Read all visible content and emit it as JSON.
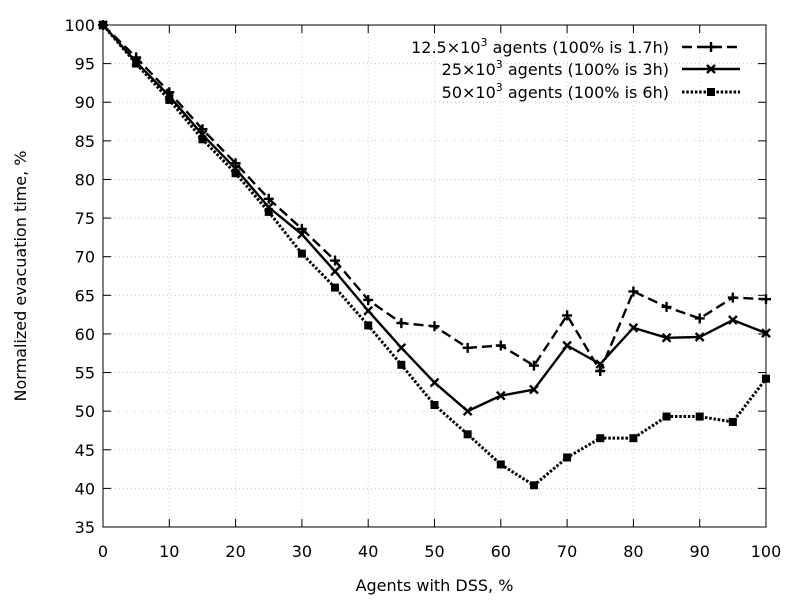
{
  "chart_data": {
    "type": "line",
    "xlabel": "Agents with DSS, %",
    "ylabel": "Normalized evacuation time, %",
    "xlim": [
      0,
      100
    ],
    "ylim": [
      35,
      100
    ],
    "xticks": [
      0,
      10,
      20,
      30,
      40,
      50,
      60,
      70,
      80,
      90,
      100
    ],
    "yticks": [
      35,
      40,
      45,
      50,
      55,
      60,
      65,
      70,
      75,
      80,
      85,
      90,
      95,
      100
    ],
    "grid": true,
    "legend_position": "top-right",
    "x": [
      0,
      5,
      10,
      15,
      20,
      25,
      30,
      35,
      40,
      45,
      50,
      55,
      60,
      65,
      70,
      75,
      80,
      85,
      90,
      95,
      100
    ],
    "series": [
      {
        "name_prefix": "12.5×10",
        "name_sup": "3",
        "name_suffix": " agents (100% is 1.7h)",
        "line_style": "dashed",
        "marker": "plus",
        "values": [
          100,
          95.8,
          91.3,
          86.5,
          82.1,
          77.5,
          73.6,
          69.5,
          64.4,
          61.4,
          61.0,
          58.2,
          58.5,
          55.9,
          62.4,
          55.2,
          65.5,
          63.5,
          62.0,
          64.7,
          64.5
        ]
      },
      {
        "name_prefix": "25×10",
        "name_sup": "3",
        "name_suffix": " agents (100% is 3h)",
        "line_style": "solid",
        "marker": "cross",
        "values": [
          100,
          95.2,
          90.8,
          85.8,
          81.4,
          76.4,
          72.9,
          68.1,
          63.0,
          58.2,
          53.7,
          50.0,
          52.0,
          52.8,
          58.5,
          56.1,
          60.8,
          59.5,
          59.6,
          61.8,
          60.1
        ]
      },
      {
        "name_prefix": "50×10",
        "name_sup": "3",
        "name_suffix": " agents (100% is 6h)",
        "line_style": "dotted",
        "marker": "square",
        "values": [
          100,
          95.0,
          90.3,
          85.2,
          80.8,
          75.8,
          70.4,
          66.0,
          61.1,
          56.0,
          50.8,
          47.0,
          43.1,
          40.4,
          44.0,
          46.5,
          46.5,
          49.3,
          49.3,
          48.6,
          54.2
        ]
      }
    ]
  }
}
